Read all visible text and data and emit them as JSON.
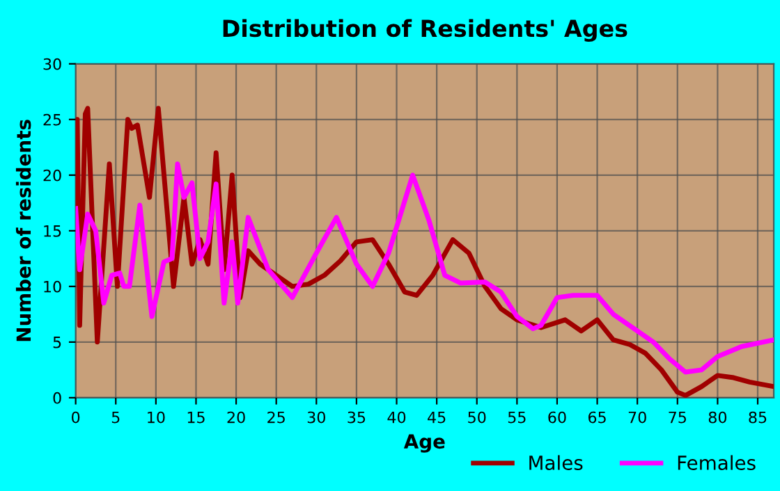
{
  "chart_data": {
    "type": "line",
    "title": "Distribution of Residents' Ages",
    "xlabel": "Age",
    "ylabel": "Number of residents",
    "xlim": [
      0,
      87
    ],
    "xticks": [
      0,
      5,
      10,
      15,
      20,
      25,
      30,
      35,
      40,
      45,
      50,
      55,
      60,
      65,
      70,
      75,
      80,
      85
    ],
    "ylim": [
      0,
      30
    ],
    "yticks": [
      0,
      5,
      10,
      15,
      20,
      25,
      30
    ],
    "grid": true,
    "legend": "bottom right",
    "series": [
      {
        "name": "Males",
        "color": "#a00000",
        "x": [
          0,
          0.2,
          0.5,
          1.2,
          1.5,
          2.7,
          4.2,
          5.2,
          6.5,
          7,
          7.7,
          9.2,
          10.3,
          12.2,
          13.5,
          14.5,
          15.5,
          16.5,
          17.5,
          18.5,
          19.5,
          20.5,
          21.5,
          23,
          25,
          27,
          29,
          31,
          33,
          35,
          37,
          39,
          41,
          42.5,
          44.5,
          47,
          49,
          51,
          53,
          55,
          58,
          61,
          63,
          65,
          67,
          69,
          71,
          73,
          75,
          76,
          78,
          80,
          82,
          84,
          87
        ],
        "values": [
          17,
          25,
          6.5,
          25.5,
          26,
          5,
          21,
          10,
          25,
          24.2,
          24.5,
          18,
          26,
          10,
          18,
          12,
          14.2,
          12,
          22,
          11.5,
          20,
          9,
          13.2,
          12,
          11,
          10,
          10.2,
          11,
          12.3,
          14,
          14.2,
          12,
          9.5,
          9.2,
          11,
          14.2,
          13,
          10,
          8,
          7,
          6.3,
          7,
          6,
          7,
          5.2,
          4.8,
          4,
          2.5,
          0.5,
          0.2,
          1,
          2,
          1.8,
          1.4,
          1
        ]
      },
      {
        "name": "Females",
        "color": "#ff00ff",
        "x": [
          0,
          0.5,
          1.5,
          2.5,
          3.5,
          4.5,
          5.5,
          6,
          6.7,
          8,
          9.5,
          11,
          12,
          12.7,
          13.5,
          14.5,
          15.5,
          16.5,
          17.5,
          18.5,
          19.5,
          20.2,
          21.5,
          24,
          27,
          30,
          32.5,
          35,
          37,
          39,
          42,
          44,
          46,
          48,
          51,
          53,
          55,
          57,
          58,
          60,
          62,
          65,
          67,
          70,
          72,
          74,
          76,
          78,
          80,
          83,
          87
        ],
        "values": [
          17,
          11.5,
          16.5,
          15,
          8.5,
          11,
          11.2,
          10,
          10,
          17.3,
          7.3,
          12.2,
          12.5,
          21,
          18,
          19.3,
          12.5,
          14,
          19.2,
          8.5,
          14,
          8.5,
          16.2,
          11.5,
          9,
          13,
          16.2,
          12,
          10,
          13,
          20,
          16,
          11,
          10.3,
          10.4,
          9.5,
          7.3,
          6.2,
          6.5,
          9,
          9.2,
          9.2,
          7.5,
          6,
          5,
          3.5,
          2.3,
          2.5,
          3.7,
          4.6,
          5.2
        ]
      }
    ]
  }
}
